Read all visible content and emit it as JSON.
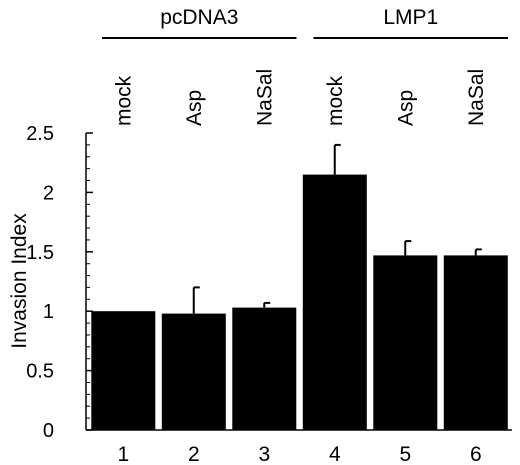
{
  "chart_data": {
    "type": "bar",
    "categories": [
      "1",
      "2",
      "3",
      "4",
      "5",
      "6"
    ],
    "treatments": [
      "mock",
      "Asp",
      "NaSal",
      "mock",
      "Asp",
      "NaSal"
    ],
    "groups": [
      {
        "name": "pcDNA3",
        "members": [
          0,
          1,
          2
        ]
      },
      {
        "name": "LMP1",
        "members": [
          3,
          4,
          5
        ]
      }
    ],
    "values": [
      1.0,
      0.98,
      1.03,
      2.15,
      1.47,
      1.47
    ],
    "errors": [
      0,
      0.22,
      0.04,
      0.25,
      0.12,
      0.05
    ],
    "ylabel": "Invasion Index",
    "xlabel": "",
    "ylim": [
      0,
      2.5
    ],
    "yticks": [
      {
        "value": 0,
        "label": "0"
      },
      {
        "value": 0.5,
        "label": "0.5"
      },
      {
        "value": 1,
        "label": "1"
      },
      {
        "value": 1.5,
        "label": "1.5"
      },
      {
        "value": 2,
        "label": "2"
      },
      {
        "value": 2.5,
        "label": "2.5"
      }
    ],
    "grid": false,
    "bar_color": "#000000"
  }
}
